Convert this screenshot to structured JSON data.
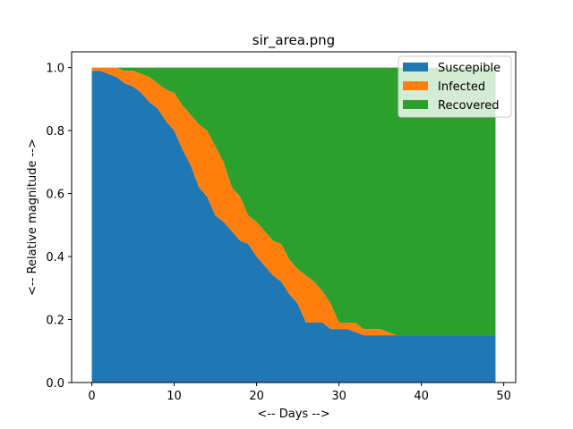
{
  "chart_data": {
    "type": "area",
    "title": "sir_area.png",
    "xlabel": "<-- Days -->",
    "ylabel": "<-- Relative magnitude -->",
    "xlim": [
      -2.45,
      51.45
    ],
    "ylim": [
      0,
      1.05
    ],
    "xticks": [
      0,
      10,
      20,
      30,
      40,
      50
    ],
    "yticks": [
      0.0,
      0.2,
      0.4,
      0.6,
      0.8,
      1.0
    ],
    "ytick_labels": [
      "0.0",
      "0.2",
      "0.4",
      "0.6",
      "0.8",
      "1.0"
    ],
    "grid": false,
    "legend_position": "top-right",
    "stacked": true,
    "x": [
      0,
      1,
      2,
      3,
      4,
      5,
      6,
      7,
      8,
      9,
      10,
      11,
      12,
      13,
      14,
      15,
      16,
      17,
      18,
      19,
      20,
      21,
      22,
      23,
      24,
      25,
      26,
      27,
      28,
      29,
      30,
      31,
      32,
      33,
      34,
      35,
      36,
      37,
      38,
      39,
      40,
      41,
      42,
      43,
      44,
      45,
      46,
      47,
      48,
      49
    ],
    "series": [
      {
        "name": "Suscepible",
        "color": "#1f77b4",
        "values": [
          0.99,
          0.99,
          0.98,
          0.97,
          0.95,
          0.94,
          0.92,
          0.89,
          0.87,
          0.83,
          0.8,
          0.74,
          0.69,
          0.62,
          0.59,
          0.53,
          0.51,
          0.48,
          0.45,
          0.44,
          0.4,
          0.37,
          0.34,
          0.32,
          0.28,
          0.25,
          0.19,
          0.19,
          0.19,
          0.17,
          0.17,
          0.17,
          0.16,
          0.15,
          0.15,
          0.15,
          0.15,
          0.15,
          0.15,
          0.15,
          0.15,
          0.15,
          0.15,
          0.15,
          0.15,
          0.15,
          0.15,
          0.15,
          0.15,
          0.15
        ]
      },
      {
        "name": "Infected",
        "color": "#ff7f0e",
        "values": [
          0.01,
          0.01,
          0.02,
          0.03,
          0.04,
          0.05,
          0.06,
          0.08,
          0.08,
          0.1,
          0.12,
          0.14,
          0.16,
          0.2,
          0.21,
          0.22,
          0.19,
          0.14,
          0.14,
          0.09,
          0.11,
          0.11,
          0.11,
          0.12,
          0.11,
          0.11,
          0.15,
          0.13,
          0.1,
          0.08,
          0.02,
          0.02,
          0.03,
          0.02,
          0.02,
          0.02,
          0.01,
          0.0,
          0.0,
          0.0,
          0.0,
          0.0,
          0.0,
          0.0,
          0.0,
          0.0,
          0.0,
          0.0,
          0.0,
          0.0
        ]
      },
      {
        "name": "Recovered",
        "color": "#2ca02c",
        "values": [
          0.0,
          0.0,
          0.0,
          0.0,
          0.01,
          0.01,
          0.02,
          0.03,
          0.05,
          0.07,
          0.08,
          0.12,
          0.15,
          0.18,
          0.2,
          0.25,
          0.3,
          0.38,
          0.41,
          0.47,
          0.49,
          0.52,
          0.55,
          0.56,
          0.61,
          0.64,
          0.66,
          0.68,
          0.71,
          0.75,
          0.81,
          0.81,
          0.81,
          0.83,
          0.83,
          0.83,
          0.84,
          0.85,
          0.85,
          0.85,
          0.85,
          0.85,
          0.85,
          0.85,
          0.85,
          0.85,
          0.85,
          0.85,
          0.85,
          0.85
        ]
      }
    ]
  }
}
